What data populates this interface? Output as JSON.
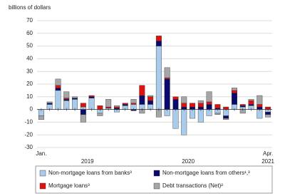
{
  "chart_data": {
    "type": "stacked_bar",
    "y_axis_title": "billions of dollars",
    "categories": [
      "Jan.",
      null,
      null,
      null,
      null,
      null,
      null,
      null,
      null,
      null,
      null,
      null,
      null,
      null,
      null,
      null,
      null,
      null,
      null,
      null,
      null,
      null,
      null,
      null,
      null,
      null,
      null,
      "Apr."
    ],
    "year_labels": [
      "2019",
      "2020",
      "2021"
    ],
    "ylim": [
      -30,
      70
    ],
    "yticks": [
      -30,
      -20,
      -10,
      0,
      10,
      20,
      30,
      40,
      50,
      60,
      70
    ],
    "grid": true,
    "legend_position": "bottom",
    "series": [
      {
        "name": "Non-mortgage loans from banks³",
        "color": "#a9cbec",
        "values": [
          -5,
          4,
          15,
          7,
          8,
          2,
          9,
          -3,
          1,
          -2,
          3,
          4,
          4,
          4,
          50,
          -5,
          -15,
          -20,
          -7,
          -10,
          -5,
          -3,
          -5,
          4,
          2,
          3,
          -7,
          -2
        ]
      },
      {
        "name": "Non-mortgage loans from others¹,³",
        "color": "#0a0a6e",
        "values": [
          0,
          1,
          2,
          1,
          1,
          -4,
          1,
          0,
          0,
          1,
          1,
          -1,
          7,
          3,
          4,
          24,
          8,
          2,
          2,
          2,
          4,
          1,
          -2,
          9,
          1,
          1,
          2,
          -2
        ]
      },
      {
        "name": "Mortgage loans³",
        "color": "#e01010",
        "values": [
          0,
          0,
          2,
          1,
          0,
          3,
          1,
          3,
          1,
          1,
          1,
          1,
          8,
          3,
          4,
          1,
          2,
          3,
          3,
          3,
          2,
          3,
          2,
          2,
          1,
          3,
          2,
          2
        ]
      },
      {
        "name": "Debt transactions (Net)²",
        "color": "#a6a6a6",
        "values": [
          -3,
          1,
          5,
          5,
          1,
          -6,
          0,
          -2,
          6,
          1,
          0,
          3,
          -3,
          1,
          -6,
          8,
          0,
          5,
          0,
          2,
          8,
          -1,
          -1,
          2,
          -3,
          1,
          7,
          -2
        ]
      }
    ]
  }
}
